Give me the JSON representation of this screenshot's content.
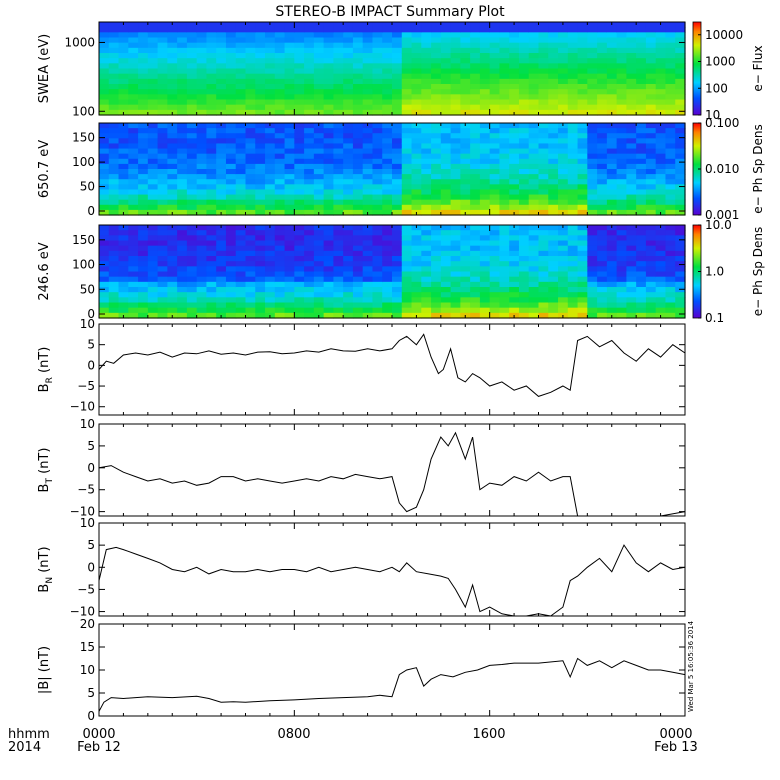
{
  "title": "STEREO-B IMPACT Summary Plot",
  "footer": {
    "corner_top": "hhmm",
    "corner_bottom": "2014",
    "x_ticks": [
      "0000",
      "0800",
      "1600",
      "0000"
    ],
    "x_dates": [
      "Feb 12",
      "",
      "",
      "Feb 13"
    ]
  },
  "timestamp": "Wed Mar  5 16:05:36 2014",
  "colors": {
    "spec_low": "#5a2dd6",
    "spec_high": "#f0d000",
    "line": "#000000"
  },
  "chart_data": [
    {
      "type": "heatmap",
      "ylabel": "SWEA (eV)",
      "yscale": "log",
      "yticks": [
        "100",
        "1000"
      ],
      "colorbar_label": "e− Flux",
      "colorbar_ticks": [
        "10",
        "100",
        "1000",
        "10000"
      ],
      "colorbar_scale": "log",
      "colorbar_range": [
        10,
        30000
      ]
    },
    {
      "type": "heatmap",
      "ylabel": "650.7 eV",
      "yticks": [
        "0",
        "50",
        "100",
        "150"
      ],
      "ylim": [
        0,
        180
      ],
      "colorbar_label": "e− Ph Sp Dens",
      "colorbar_ticks": [
        "0.001",
        "0.010",
        "0.100"
      ],
      "colorbar_scale": "log",
      "colorbar_range": [
        0.001,
        0.1
      ]
    },
    {
      "type": "heatmap",
      "ylabel": "246.6 eV",
      "yticks": [
        "0",
        "50",
        "100",
        "150"
      ],
      "ylim": [
        0,
        180
      ],
      "colorbar_label": "e− Ph Sp Dens",
      "colorbar_ticks": [
        "0.1",
        "1.0",
        "10.0"
      ],
      "colorbar_scale": "log",
      "colorbar_range": [
        0.1,
        10
      ]
    },
    {
      "type": "line",
      "ylabel": "B",
      "ylabel_sub": "R",
      "ylabel_unit": "(nT)",
      "ylim": [
        -12,
        10
      ],
      "yticks": [
        "−10",
        "−5",
        "0",
        "5",
        "10"
      ],
      "xlim": [
        0,
        24
      ],
      "x": [
        0,
        0.3,
        0.6,
        1,
        1.5,
        2,
        2.5,
        3,
        3.5,
        4,
        4.5,
        5,
        5.5,
        6,
        6.5,
        7,
        7.5,
        8,
        8.5,
        9,
        9.5,
        10,
        10.5,
        11,
        11.5,
        12,
        12.3,
        12.6,
        13,
        13.3,
        13.6,
        13.9,
        14.1,
        14.4,
        14.7,
        15,
        15.3,
        15.6,
        16,
        16.5,
        17,
        17.5,
        18,
        18.5,
        19,
        19.3,
        19.6,
        20,
        20.5,
        21,
        21.5,
        22,
        22.5,
        23,
        23.5,
        24
      ],
      "y": [
        -1,
        1,
        0.5,
        2.5,
        3,
        2.5,
        3.2,
        2,
        3,
        2.8,
        3.5,
        2.7,
        3,
        2.5,
        3.2,
        3.3,
        2.8,
        3,
        3.5,
        3.2,
        4,
        3.5,
        3.4,
        4,
        3.5,
        4,
        6,
        7,
        5,
        7.5,
        2,
        -2,
        -1,
        4,
        -3,
        -4,
        -2,
        -3,
        -5,
        -4,
        -6,
        -5,
        -7.5,
        -6.5,
        -5,
        -6,
        6,
        7,
        4.5,
        6,
        3,
        1,
        4,
        2,
        5,
        3
      ]
    },
    {
      "type": "line",
      "ylabel": "B",
      "ylabel_sub": "T",
      "ylabel_unit": "(nT)",
      "ylim": [
        -11,
        10
      ],
      "yticks": [
        "−10",
        "−5",
        "0",
        "5",
        "10"
      ],
      "xlim": [
        0,
        24
      ],
      "x": [
        0,
        0.5,
        1,
        1.5,
        2,
        2.5,
        3,
        3.5,
        4,
        4.5,
        5,
        5.5,
        6,
        6.5,
        7,
        7.5,
        8,
        8.5,
        9,
        9.5,
        10,
        10.5,
        11,
        11.5,
        12,
        12.3,
        12.6,
        13,
        13.3,
        13.6,
        14,
        14.3,
        14.6,
        15,
        15.3,
        15.6,
        16,
        16.5,
        17,
        17.5,
        18,
        18.5,
        19,
        19.3,
        19.6,
        20,
        21,
        22,
        23,
        24
      ],
      "y": [
        0,
        0.5,
        -1,
        -2,
        -3,
        -2.5,
        -3.5,
        -3,
        -4,
        -3.5,
        -2,
        -2,
        -3,
        -2.5,
        -3,
        -3.5,
        -3,
        -2.5,
        -3,
        -2,
        -2.5,
        -1.5,
        -2,
        -2.5,
        -2,
        -8,
        -10,
        -9,
        -5,
        2,
        7,
        5,
        8,
        2,
        7,
        -5,
        -3.5,
        -4,
        -2,
        -3,
        -1,
        -3,
        -2,
        -2,
        -11,
        -11,
        -11,
        -11,
        -11,
        -10
      ]
    },
    {
      "type": "line",
      "ylabel": "B",
      "ylabel_sub": "N",
      "ylabel_unit": "(nT)",
      "ylim": [
        -11,
        10
      ],
      "yticks": [
        "−10",
        "−5",
        "0",
        "5",
        "10"
      ],
      "xlim": [
        0,
        24
      ],
      "x": [
        0,
        0.3,
        0.7,
        1,
        1.5,
        2,
        2.5,
        3,
        3.5,
        4,
        4.5,
        5,
        5.5,
        6,
        6.5,
        7,
        7.5,
        8,
        8.5,
        9,
        9.5,
        10,
        10.5,
        11,
        11.5,
        12,
        12.3,
        12.6,
        13,
        13.5,
        14,
        14.3,
        14.6,
        15,
        15.3,
        15.6,
        16,
        16.5,
        17,
        17.5,
        18,
        18.5,
        19,
        19.3,
        19.6,
        20,
        20.5,
        21,
        21.5,
        22,
        22.5,
        23,
        23.5,
        24
      ],
      "y": [
        -3,
        4,
        4.5,
        4,
        3,
        2,
        1,
        -0.5,
        -1,
        0,
        -1.5,
        -0.5,
        -1,
        -1,
        -0.5,
        -1,
        -0.5,
        -0.5,
        -1,
        0,
        -1,
        -0.5,
        0,
        -0.5,
        -1,
        0,
        -1,
        1,
        -1,
        -1.5,
        -2,
        -2.5,
        -5,
        -9,
        -4,
        -10,
        -9,
        -10.5,
        -11,
        -11,
        -10.5,
        -11,
        -9,
        -3,
        -2,
        0,
        2,
        -1,
        5,
        1,
        -1,
        1,
        -0.5,
        0
      ]
    },
    {
      "type": "line",
      "ylabel": "|B|",
      "ylabel_unit": "(nT)",
      "ylim": [
        0,
        20
      ],
      "yticks": [
        "0",
        "5",
        "10",
        "15",
        "20"
      ],
      "xlim": [
        0,
        24
      ],
      "x": [
        0,
        0.2,
        0.5,
        1,
        1.5,
        2,
        3,
        4,
        4.5,
        5,
        5.5,
        6,
        7,
        8,
        9,
        10,
        11,
        11.5,
        12,
        12.3,
        12.6,
        13,
        13.3,
        13.6,
        14,
        14.5,
        15,
        15.5,
        16,
        16.5,
        17,
        18,
        19,
        19.3,
        19.6,
        20,
        20.5,
        21,
        21.5,
        22,
        22.5,
        23,
        23.5,
        24
      ],
      "y": [
        1,
        3,
        4,
        3.8,
        4,
        4.2,
        4,
        4.3,
        3.8,
        3,
        3.1,
        3,
        3.3,
        3.5,
        3.8,
        4,
        4.2,
        4.5,
        4.2,
        9,
        10,
        10.5,
        6.5,
        8,
        9,
        8.5,
        9.5,
        10,
        11,
        11.2,
        11.5,
        11.5,
        12,
        8.5,
        12.5,
        11,
        12,
        10.5,
        12,
        11,
        10,
        10,
        9.5,
        9
      ]
    }
  ]
}
